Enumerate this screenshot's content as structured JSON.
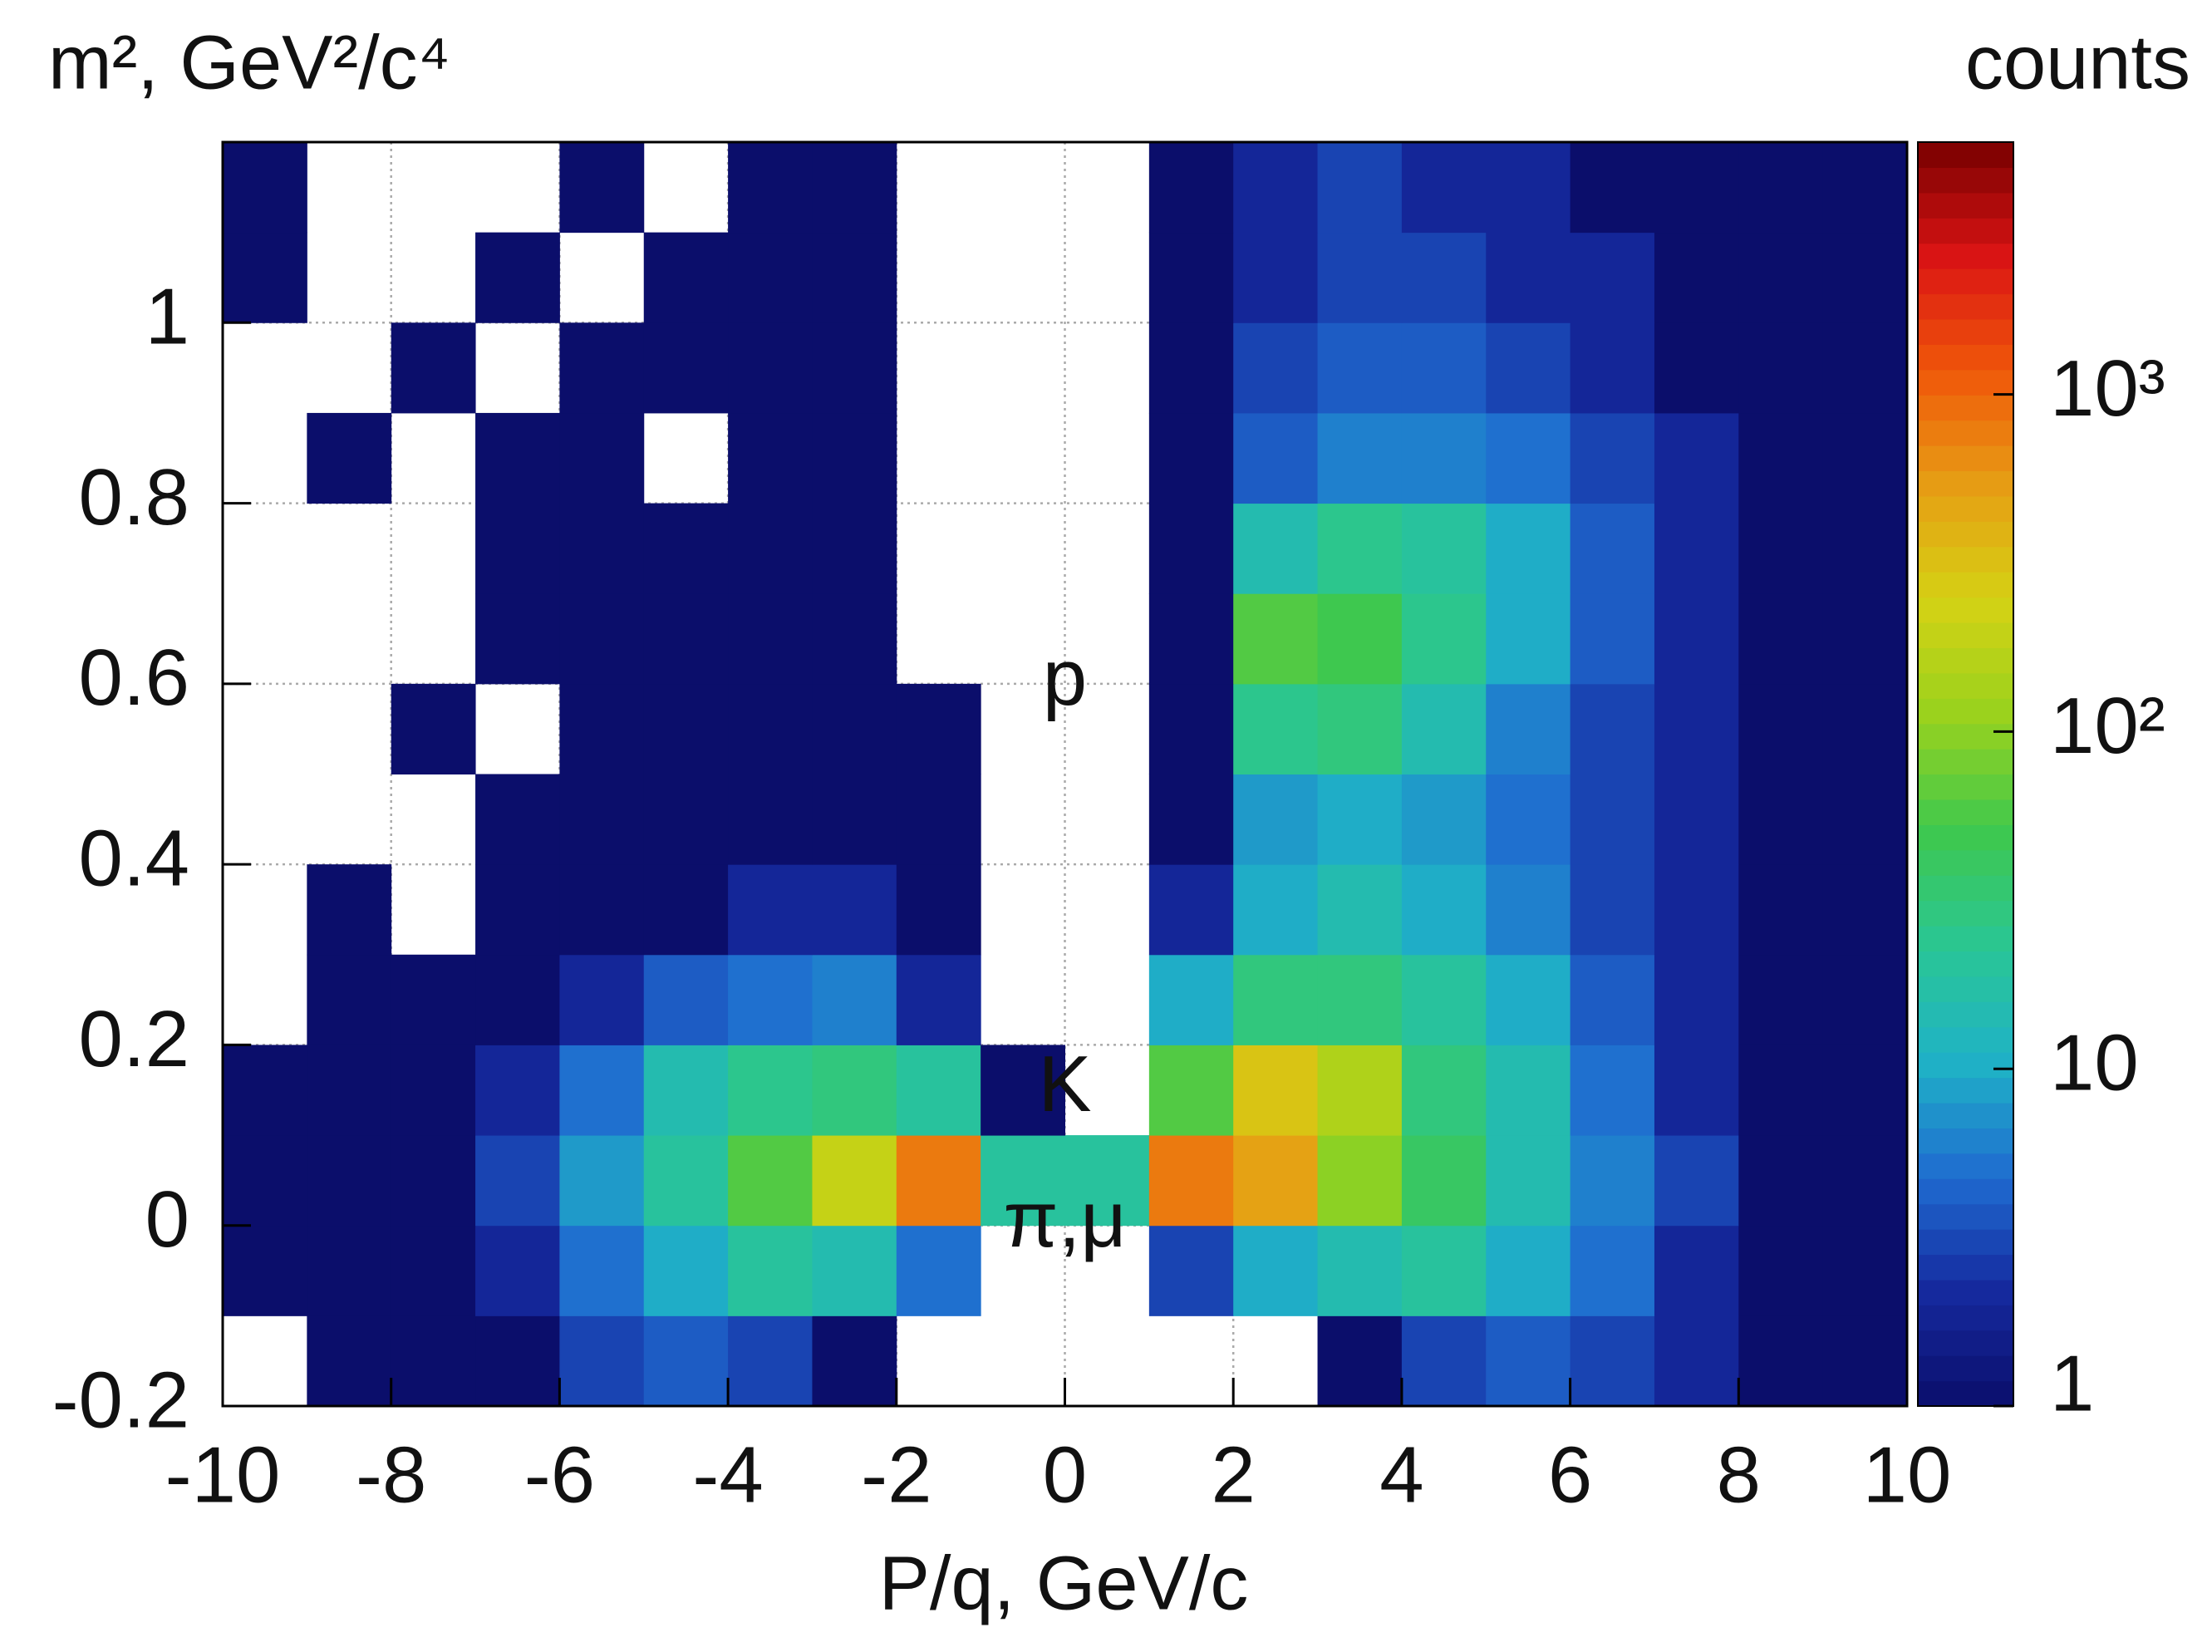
{
  "chart_data": {
    "type": "heatmap",
    "y_label": "m², GeV²/c⁴",
    "x_label": "P/q, GeV/c",
    "z_label": "counts",
    "annotations": [
      "p",
      "K",
      "π,μ"
    ],
    "xlim": [
      -10,
      10
    ],
    "ylim": [
      -0.2,
      1.2
    ],
    "zlim": [
      1,
      5600
    ],
    "z_log": true,
    "grid": true,
    "xticks": [
      -10,
      -8,
      -6,
      -4,
      -2,
      0,
      2,
      4,
      6,
      8,
      10
    ],
    "yticks": [
      -0.2,
      0,
      0.2,
      0.4,
      0.6,
      0.8,
      1
    ],
    "zticks": [
      1,
      10,
      {
        "value": 100,
        "label": "10²"
      },
      {
        "value": 1000,
        "label": "10³"
      }
    ],
    "colorscale": [
      "#0b0e6b",
      "#15299e",
      "#1f6cd0",
      "#1fb2c6",
      "#2ac694",
      "#3ec84e",
      "#98d21e",
      "#d4d214",
      "#e69e14",
      "#f0580a",
      "#da1414",
      "#780000"
    ],
    "x_bins": [
      -10,
      -9,
      -8,
      -7,
      -6,
      -5,
      -4,
      -3,
      -2,
      -1,
      0,
      1,
      2,
      3,
      4,
      5,
      6,
      7,
      8,
      9,
      10
    ],
    "y_bins": [
      -0.2,
      -0.1,
      0,
      0.1,
      0.2,
      0.3,
      0.4,
      0.5,
      0.6,
      0.7,
      0.8,
      0.9,
      1,
      1.1,
      1.2
    ],
    "z": [
      [
        0,
        1,
        1,
        1,
        3,
        4,
        3,
        1,
        0,
        0,
        0,
        0,
        0,
        1,
        3,
        4,
        3,
        2,
        1,
        1
      ],
      [
        1,
        1,
        1,
        2,
        5,
        10,
        20,
        15,
        5,
        0,
        0,
        3,
        10,
        15,
        20,
        10,
        5,
        2,
        1,
        1
      ],
      [
        1,
        1,
        1,
        3,
        8,
        20,
        60,
        200,
        800,
        20,
        20,
        800,
        500,
        100,
        40,
        15,
        6,
        3,
        1,
        1
      ],
      [
        1,
        1,
        1,
        2,
        5,
        15,
        25,
        30,
        20,
        1,
        0,
        60,
        300,
        150,
        30,
        15,
        5,
        2,
        1,
        1
      ],
      [
        0,
        1,
        1,
        1,
        2,
        4,
        5,
        6,
        2,
        0,
        0,
        10,
        30,
        30,
        20,
        10,
        4,
        2,
        1,
        1
      ],
      [
        0,
        1,
        0,
        1,
        1,
        1,
        2,
        2,
        1,
        0,
        0,
        2,
        10,
        15,
        10,
        6,
        3,
        2,
        1,
        1
      ],
      [
        0,
        0,
        0,
        1,
        1,
        1,
        1,
        1,
        1,
        0,
        0,
        1,
        8,
        10,
        8,
        5,
        3,
        2,
        1,
        1
      ],
      [
        0,
        0,
        1,
        0,
        1,
        1,
        1,
        1,
        1,
        0,
        0,
        1,
        25,
        30,
        15,
        6,
        3,
        2,
        1,
        1
      ],
      [
        0,
        0,
        0,
        1,
        1,
        1,
        1,
        1,
        0,
        0,
        0,
        1,
        60,
        50,
        25,
        10,
        4,
        2,
        1,
        1
      ],
      [
        0,
        0,
        0,
        1,
        1,
        1,
        1,
        1,
        0,
        0,
        0,
        1,
        15,
        25,
        20,
        10,
        4,
        2,
        1,
        1
      ],
      [
        0,
        1,
        0,
        1,
        1,
        0,
        1,
        1,
        0,
        0,
        0,
        1,
        4,
        6,
        6,
        5,
        3,
        2,
        1,
        1
      ],
      [
        0,
        0,
        1,
        0,
        1,
        1,
        1,
        1,
        0,
        0,
        0,
        1,
        3,
        4,
        4,
        3,
        2,
        1,
        1,
        1
      ],
      [
        1,
        0,
        0,
        1,
        0,
        1,
        1,
        1,
        0,
        0,
        0,
        1,
        2,
        3,
        3,
        2,
        2,
        1,
        1,
        1
      ],
      [
        1,
        0,
        0,
        0,
        1,
        0,
        1,
        1,
        0,
        0,
        0,
        1,
        2,
        3,
        2,
        2,
        1,
        1,
        1,
        1
      ]
    ]
  }
}
